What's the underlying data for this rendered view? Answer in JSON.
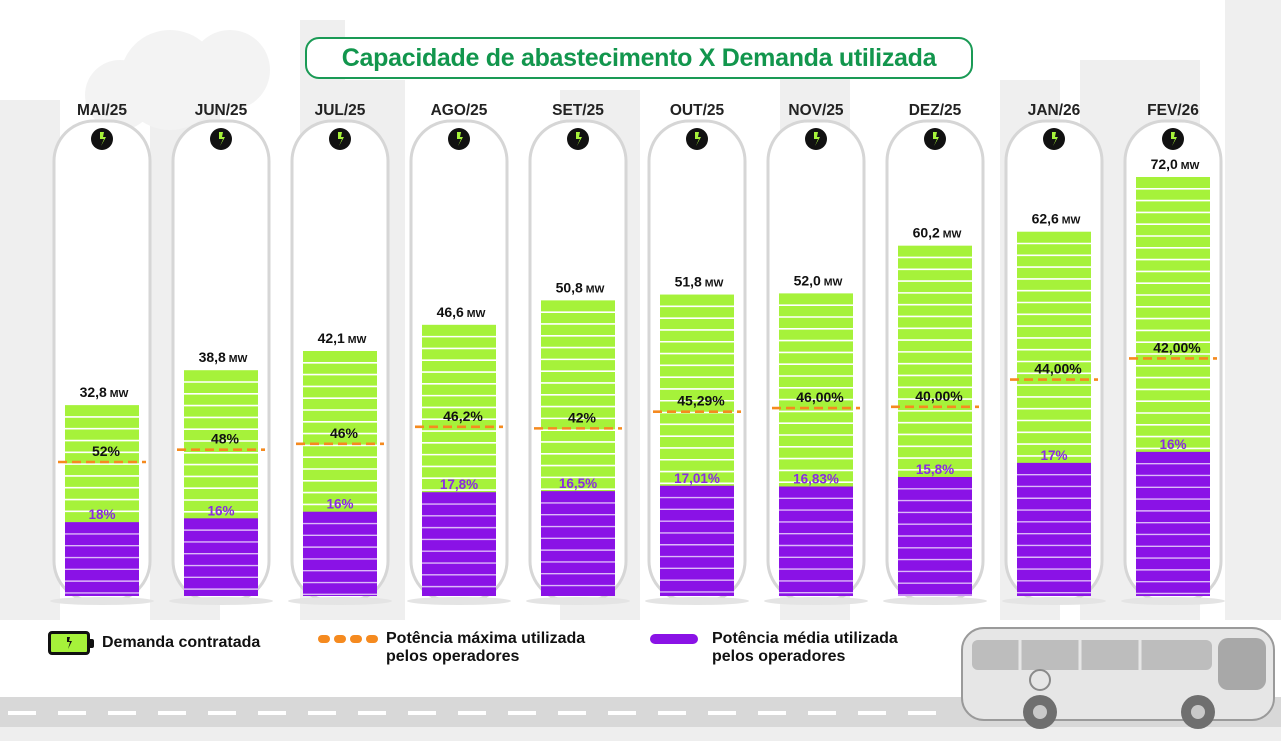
{
  "chart_data": {
    "type": "bar",
    "title": "Capacidade de abastecimento X Demanda utilizada",
    "categories": [
      "MAI/25",
      "JUN/25",
      "JUL/25",
      "AGO/25",
      "SET/25",
      "OUT/25",
      "NOV/25",
      "DEZ/25",
      "JAN/26",
      "FEV/26"
    ],
    "unit": "MW",
    "series": [
      {
        "name": "Demanda contratada",
        "values": [
          32.8,
          38.8,
          42.1,
          46.6,
          50.8,
          51.8,
          52.0,
          60.2,
          62.6,
          72.0
        ],
        "labels": [
          "32,8",
          "38,8",
          "42,1",
          "46,6",
          "50,8",
          "51,8",
          "52,0",
          "60,2",
          "62,6",
          "72,0"
        ]
      },
      {
        "name": "Potência máxima utilizada pelos operadores",
        "values": [
          52,
          48,
          46,
          46.2,
          42,
          45.29,
          46.0,
          40.0,
          44.0,
          42.0
        ],
        "labels": [
          "52%",
          "48%",
          "46%",
          "46,2%",
          "42%",
          "45,29%",
          "46,00%",
          "40,00%",
          "44,00%",
          "42,00%"
        ]
      },
      {
        "name": "Potência média utilizada pelos operadores",
        "values": [
          18,
          16,
          16,
          17.8,
          16.5,
          17.01,
          16.83,
          15.8,
          17,
          16
        ],
        "labels": [
          "18%",
          "16%",
          "16%",
          "17,8%",
          "16,5%",
          "17,01%",
          "16,83%",
          "15,8%",
          "17%",
          "16%"
        ]
      }
    ],
    "ylim": [
      0,
      72
    ],
    "colors": {
      "contracted": "#a6f23a",
      "max_line": "#f58a1f",
      "avg": "#8a12e6",
      "title": "#12964d",
      "icon_bg": "#111111",
      "icon_fg": "#a6f23a"
    }
  },
  "legend": {
    "contracted": "Demanda contratada",
    "max_line1": "Potência máxima utilizada",
    "max_line2": "pelos operadores",
    "avg_line1": "Potência média utilizada",
    "avg_line2": "pelos operadores"
  },
  "icons": [
    "lightning-plug-icon",
    "battery-icon",
    "bus-illustration"
  ]
}
